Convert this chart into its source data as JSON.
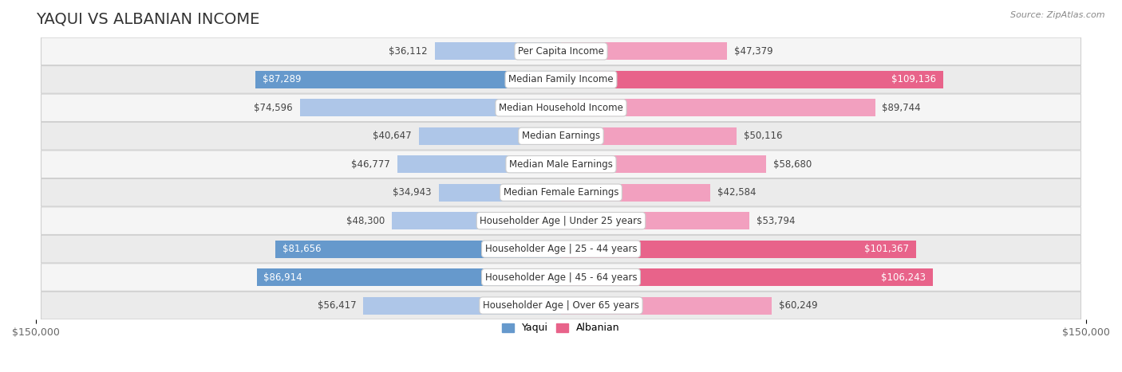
{
  "title": "YAQUI VS ALBANIAN INCOME",
  "source": "Source: ZipAtlas.com",
  "categories": [
    "Per Capita Income",
    "Median Family Income",
    "Median Household Income",
    "Median Earnings",
    "Median Male Earnings",
    "Median Female Earnings",
    "Householder Age | Under 25 years",
    "Householder Age | 25 - 44 years",
    "Householder Age | 45 - 64 years",
    "Householder Age | Over 65 years"
  ],
  "yaqui_values": [
    36112,
    87289,
    74596,
    40647,
    46777,
    34943,
    48300,
    81656,
    86914,
    56417
  ],
  "albanian_values": [
    47379,
    109136,
    89744,
    50116,
    58680,
    42584,
    53794,
    101367,
    106243,
    60249
  ],
  "yaqui_labels": [
    "$36,112",
    "$87,289",
    "$74,596",
    "$40,647",
    "$46,777",
    "$34,943",
    "$48,300",
    "$81,656",
    "$86,914",
    "$56,417"
  ],
  "albanian_labels": [
    "$47,379",
    "$109,136",
    "$89,744",
    "$50,116",
    "$58,680",
    "$42,584",
    "$53,794",
    "$101,367",
    "$106,243",
    "$60,249"
  ],
  "yaqui_color_light": "#aec6e8",
  "yaqui_color_dark": "#6699cc",
  "albanian_color_light": "#f2a0bf",
  "albanian_color_dark": "#e8638a",
  "max_value": 150000,
  "background_color": "#ffffff",
  "row_bg_even": "#f5f5f5",
  "row_bg_odd": "#ebebeb",
  "yaqui_dark_threshold": 75000,
  "albanian_dark_threshold": 95000,
  "title_fontsize": 14,
  "tick_fontsize": 9,
  "bar_label_fontsize": 8.5,
  "category_fontsize": 8.5
}
